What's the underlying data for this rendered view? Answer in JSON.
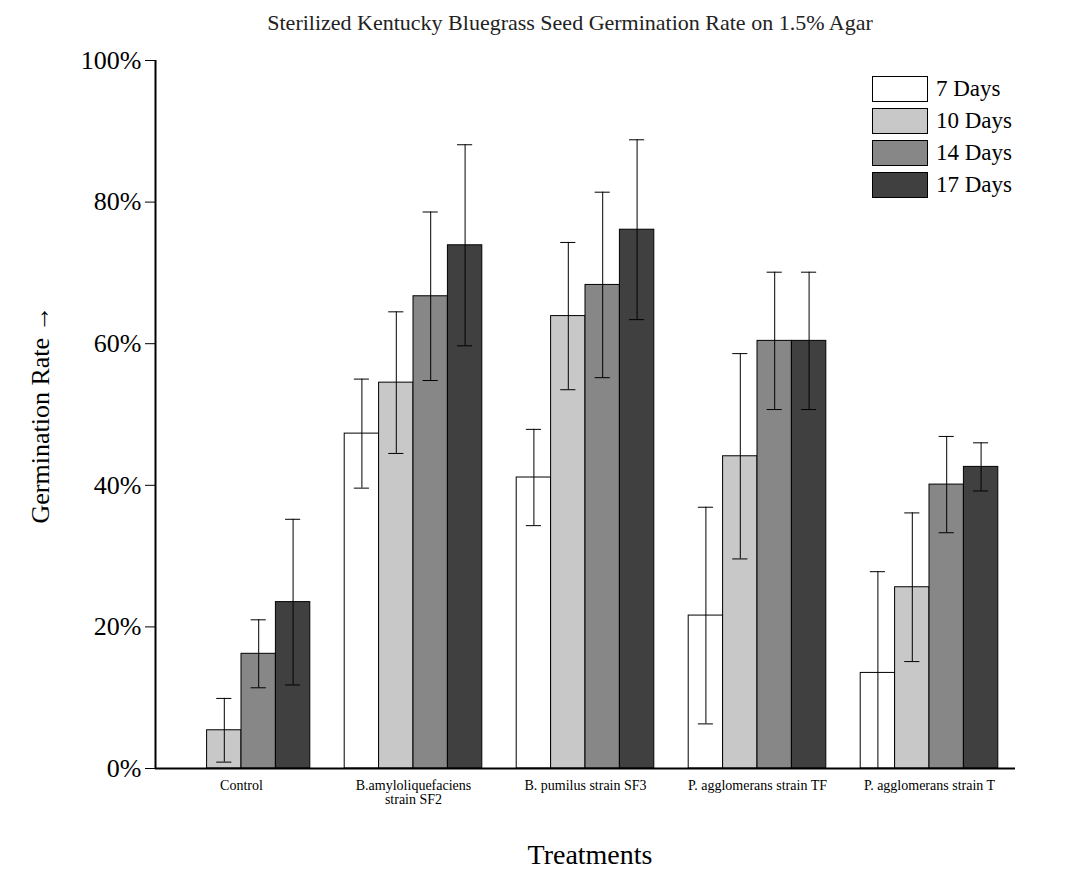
{
  "chart_data": {
    "type": "bar",
    "title": "Sterilized Kentucky Bluegrass Seed Germination Rate on 1.5% Agar",
    "x_label": "Treatments",
    "y_label": "Germination Rate",
    "categories": [
      "Control",
      "B.amyloliquefaciens strain SF2",
      "B. pumilus strain SF3",
      "P. agglomerans strain TF",
      "P. agglomerans strain T"
    ],
    "series": [
      {
        "name": "7 Days",
        "color": "#ffffff",
        "values": [
          0,
          47.3,
          41.1,
          21.6,
          13.5
        ],
        "errors": [
          0,
          7.7,
          6.8,
          15.3,
          14.3
        ]
      },
      {
        "name": "10 Days",
        "color": "#c8c8c8",
        "values": [
          5.4,
          54.5,
          63.9,
          44.1,
          25.6
        ],
        "errors": [
          4.5,
          10.0,
          10.4,
          14.5,
          10.5
        ]
      },
      {
        "name": "14 Days",
        "color": "#878787",
        "values": [
          16.2,
          66.7,
          68.3,
          60.4,
          40.1
        ],
        "errors": [
          4.8,
          11.9,
          13.1,
          9.7,
          6.8
        ]
      },
      {
        "name": "17 Days",
        "color": "#404040",
        "values": [
          23.5,
          73.9,
          76.1,
          60.4,
          42.6
        ],
        "errors": [
          11.7,
          14.2,
          12.7,
          9.7,
          3.4
        ]
      }
    ],
    "ylim": [
      0,
      100
    ],
    "yticks": [
      {
        "value": 0,
        "label": "0%"
      },
      {
        "value": 20,
        "label": "20%"
      },
      {
        "value": 40,
        "label": "40%"
      },
      {
        "value": 60,
        "label": "60%"
      },
      {
        "value": 80,
        "label": "80%"
      },
      {
        "value": 100,
        "label": "100%"
      }
    ],
    "legend": "top-right",
    "grid": false
  }
}
